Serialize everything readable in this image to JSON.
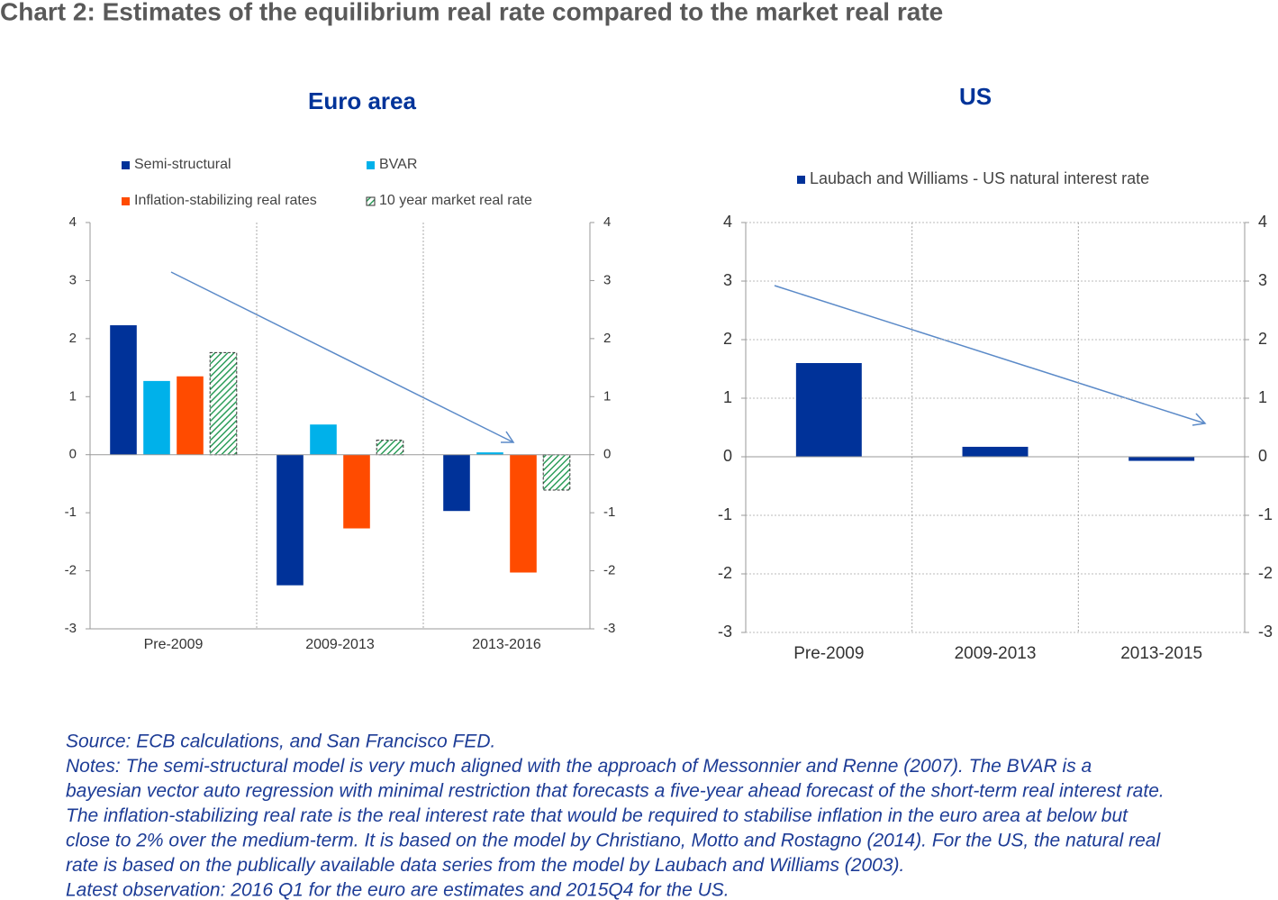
{
  "title": "Chart 2: Estimates of the equilibrium real rate compared to the market real rate",
  "chart_data": [
    {
      "type": "bar",
      "title": "Euro area",
      "categories": [
        "Pre-2009",
        "2009-2013",
        "2013-2016"
      ],
      "series": [
        {
          "name": "Semi-structural",
          "color": "#003299",
          "values": [
            2.23,
            -2.25,
            -0.97
          ]
        },
        {
          "name": "BVAR",
          "color": "#00b1ea",
          "values": [
            1.27,
            0.52,
            0.04
          ]
        },
        {
          "name": "Inflation-stabilizing real rates",
          "color": "#ff4b00",
          "values": [
            1.35,
            -1.27,
            -2.03
          ]
        },
        {
          "name": "10 year market real rate",
          "color": "#2e9e5b",
          "hatch": true,
          "values": [
            1.76,
            0.25,
            -0.61
          ]
        }
      ],
      "ylim": [
        -3,
        4
      ],
      "yticks": [
        -3,
        -2,
        -1,
        0,
        1,
        2,
        3,
        4
      ],
      "y2lim": [
        -3,
        4
      ],
      "y2ticks": [
        -3,
        -2,
        -1,
        0,
        1,
        2,
        3,
        4
      ],
      "grid": "vertical"
    },
    {
      "type": "bar",
      "title": "US",
      "categories": [
        "Pre-2009",
        "2009-2013",
        "2013-2015"
      ],
      "series": [
        {
          "name": "Laubach and Williams - US natural interest rate",
          "color": "#003299",
          "values": [
            1.6,
            0.17,
            -0.07
          ]
        }
      ],
      "ylim": [
        -3,
        4
      ],
      "yticks": [
        -3,
        -2,
        -1,
        0,
        1,
        2,
        3,
        4
      ],
      "y2lim": [
        -3,
        4
      ],
      "y2ticks": [
        -3,
        -2,
        -1,
        0,
        1,
        2,
        3,
        4
      ],
      "grid": "both"
    }
  ],
  "notes": [
    "Source: ECB calculations, and San Francisco FED.",
    "Notes: The semi-structural model is very much aligned with the approach of Messonnier and Renne (2007). The BVAR is a",
    "bayesian vector auto regression with minimal restriction  that forecasts a five-year ahead forecast of the short-term real interest rate.",
    "The  inflation-stabilizing real rate is the real interest rate that would be required to stabilise inflation in the euro area at below but",
    "close to 2% over the medium-term. It is based on the model by Christiano, Motto and Rostagno (2014). For the US, the natural real",
    "rate is based on the publically available data series from the model by Laubach and Williams (2003).",
    "Latest observation: 2016 Q1  for the euro are estimates and 2015Q4 for the US."
  ]
}
